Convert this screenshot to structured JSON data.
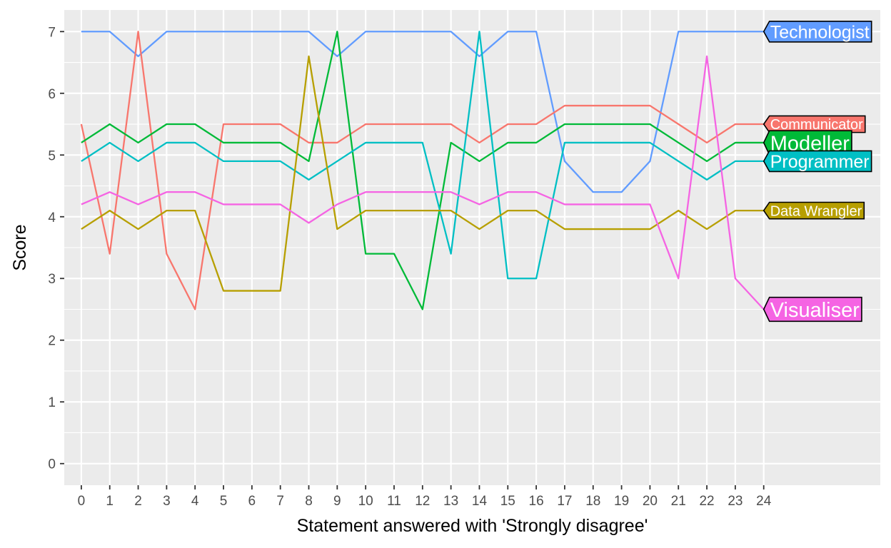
{
  "chart_data": {
    "type": "line",
    "title": "",
    "xlabel": "Statement answered with 'Strongly disagree'",
    "ylabel": "Score",
    "x": [
      0,
      1,
      2,
      3,
      4,
      5,
      6,
      7,
      8,
      9,
      10,
      11,
      12,
      13,
      14,
      15,
      16,
      17,
      18,
      19,
      20,
      21,
      22,
      23,
      24
    ],
    "xlim": [
      -0.6,
      28.1
    ],
    "ylim": [
      -0.35,
      7.35
    ],
    "yticks": [
      0,
      1,
      2,
      3,
      4,
      5,
      6,
      7
    ],
    "grid": true,
    "legend": "direct labels at line ends (right)",
    "background": "#ebebeb",
    "series": [
      {
        "name": "Technologist",
        "color": "#619CFF",
        "values": [
          7,
          7,
          6.6,
          7,
          7,
          7,
          7,
          7,
          7,
          6.6,
          7,
          7,
          7,
          7,
          6.6,
          7,
          7,
          4.9,
          4.4,
          4.4,
          4.9,
          7,
          7,
          7,
          7
        ]
      },
      {
        "name": "Communicator",
        "color": "#F8766D",
        "values": [
          5.5,
          3.4,
          7,
          3.4,
          2.5,
          5.5,
          5.5,
          5.5,
          5.2,
          5.2,
          5.5,
          5.5,
          5.5,
          5.5,
          5.2,
          5.5,
          5.5,
          5.8,
          5.8,
          5.8,
          5.8,
          5.5,
          5.2,
          5.5,
          5.5
        ]
      },
      {
        "name": "Modeller",
        "color": "#00BA38",
        "values": [
          5.2,
          5.5,
          5.2,
          5.5,
          5.5,
          5.2,
          5.2,
          5.2,
          4.9,
          7,
          3.4,
          3.4,
          2.5,
          5.2,
          4.9,
          5.2,
          5.2,
          5.5,
          5.5,
          5.5,
          5.5,
          5.2,
          4.9,
          5.2,
          5.2
        ]
      },
      {
        "name": "Programmer",
        "color": "#00BFC4",
        "values": [
          4.9,
          5.2,
          4.9,
          5.2,
          5.2,
          4.9,
          4.9,
          4.9,
          4.6,
          4.9,
          5.2,
          5.2,
          5.2,
          3.4,
          7,
          3,
          3,
          5.2,
          5.2,
          5.2,
          5.2,
          4.9,
          4.6,
          4.9,
          4.9
        ]
      },
      {
        "name": "Data Wrangler",
        "color": "#B79F00",
        "values": [
          3.8,
          4.1,
          3.8,
          4.1,
          4.1,
          2.8,
          2.8,
          2.8,
          6.6,
          3.8,
          4.1,
          4.1,
          4.1,
          4.1,
          3.8,
          4.1,
          4.1,
          3.8,
          3.8,
          3.8,
          3.8,
          4.1,
          3.8,
          4.1,
          4.1
        ]
      },
      {
        "name": "Visualiser",
        "color": "#F564E3",
        "values": [
          4.2,
          4.4,
          4.2,
          4.4,
          4.4,
          4.2,
          4.2,
          4.2,
          3.9,
          4.2,
          4.4,
          4.4,
          4.4,
          4.4,
          4.2,
          4.4,
          4.4,
          4.2,
          4.2,
          4.2,
          4.2,
          3,
          6.6,
          3,
          2.5
        ]
      }
    ],
    "end_labels": [
      {
        "series": "Technologist",
        "text": "Technologist",
        "y": 7,
        "font_size": "large"
      },
      {
        "series": "Communicator",
        "text": "Communicator",
        "y": 5.5,
        "font_size": "medium"
      },
      {
        "series": "Modeller",
        "text": "Modeller",
        "y": 5.2,
        "font_size": "xlarge"
      },
      {
        "series": "Programmer",
        "text": "Programmer",
        "y": 4.9,
        "font_size": "large"
      },
      {
        "series": "Data Wrangler",
        "text": "Data Wrangler",
        "y": 4.1,
        "font_size": "medium"
      },
      {
        "series": "Visualiser",
        "text": "Visualiser",
        "y": 2.5,
        "font_size": "xlarge"
      }
    ]
  }
}
